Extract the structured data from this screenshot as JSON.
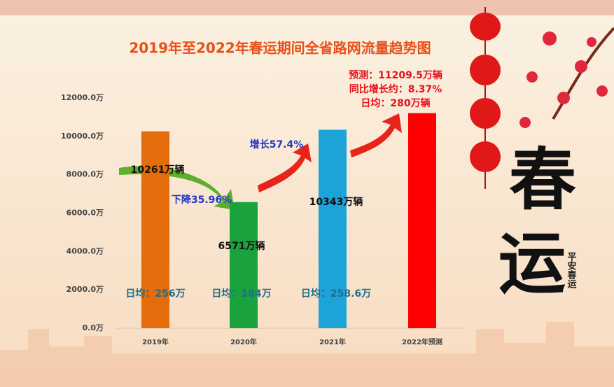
{
  "chart_data": {
    "type": "bar",
    "title": "2019年至2022年春运期间全省路网流量趋势图",
    "categories": [
      "2019年",
      "2020年",
      "2021年",
      "2022年预测"
    ],
    "values": [
      10261,
      6571,
      10343,
      11209.5
    ],
    "value_labels": [
      "10261万辆",
      "6571万辆",
      "10343万辆",
      "预测：11209.5万辆"
    ],
    "colors": [
      "#e46c0a",
      "#1aa33c",
      "#1ca3d8",
      "#ff0000"
    ],
    "ylim": [
      0,
      12000
    ],
    "yticks": [
      {
        "value": 0,
        "label": "0.0万"
      },
      {
        "value": 2000,
        "label": "2000.0万"
      },
      {
        "value": 4000,
        "label": "4000.0万"
      },
      {
        "value": 6000,
        "label": "6000.0万"
      },
      {
        "value": 8000,
        "label": "8000.0万"
      },
      {
        "value": 10000,
        "label": "10000.0万"
      },
      {
        "value": 12000,
        "label": "12000.0万"
      }
    ],
    "daily_labels": [
      "日均：256万",
      "日均：184万",
      "日均：258.6万"
    ],
    "annotations": [
      "下降35.96%",
      "增长57.4%",
      "同比增长约：8.37%",
      "日均：280万辆"
    ]
  },
  "decoration": {
    "big1": "春",
    "big2": "运",
    "slogan": "平安春运"
  }
}
